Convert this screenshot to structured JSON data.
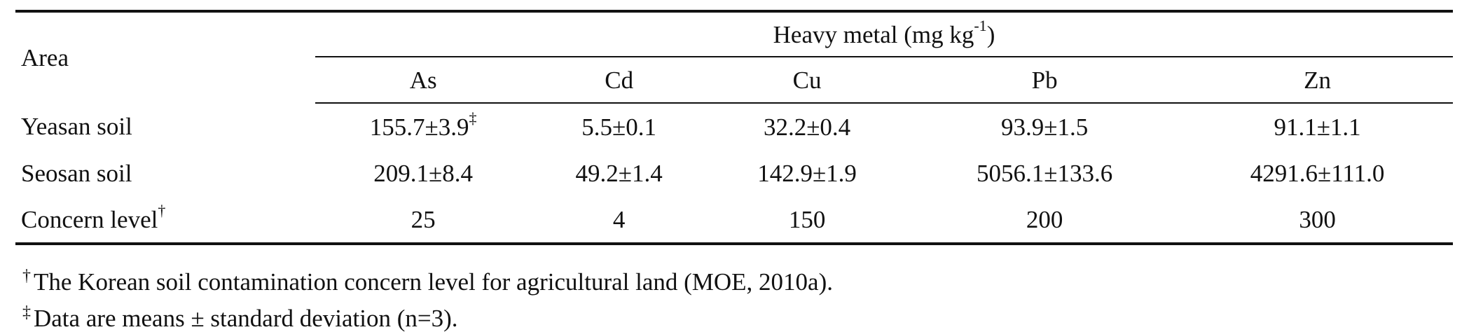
{
  "table": {
    "area_header": "Area",
    "group_header": "Heavy metal (mg kg",
    "group_header_sup": "-1",
    "group_header_end": ")",
    "columns": [
      "As",
      "Cd",
      "Cu",
      "Pb",
      "Zn"
    ],
    "rows": [
      {
        "label": "Yeasan soil",
        "label_mark": "",
        "cells": [
          "155.7±3.9",
          "5.5±0.1",
          "32.2±0.4",
          "93.9±1.5",
          "91.1±1.1"
        ],
        "first_cell_mark": "‡"
      },
      {
        "label": "Seosan soil",
        "label_mark": "",
        "cells": [
          "209.1±8.4",
          "49.2±1.4",
          "142.9±1.9",
          "5056.1±133.6",
          "4291.6±111.0"
        ],
        "first_cell_mark": ""
      },
      {
        "label": "Concern level",
        "label_mark": "†",
        "cells": [
          "25",
          "4",
          "150",
          "200",
          "300"
        ],
        "first_cell_mark": ""
      }
    ]
  },
  "footnotes": [
    {
      "mark": "†",
      "text": "The Korean soil contamination concern level for agricultural land (MOE, 2010a)."
    },
    {
      "mark": "‡",
      "text": "Data are means ± standard deviation (n=3)."
    }
  ]
}
